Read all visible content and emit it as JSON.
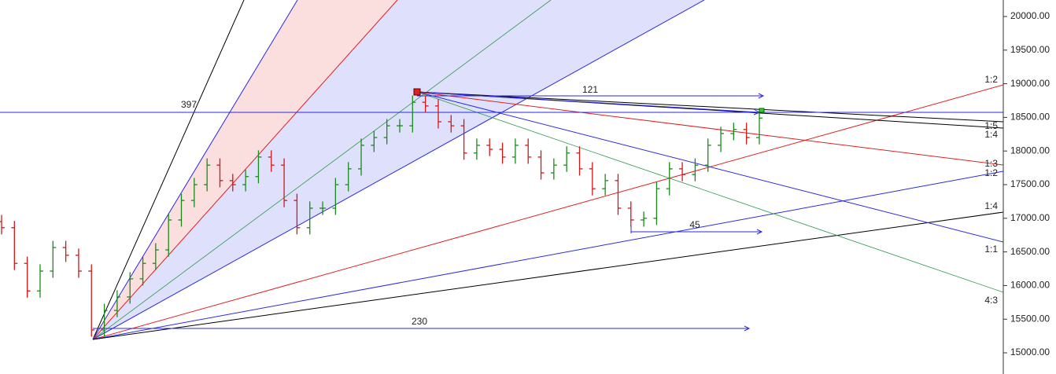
{
  "chart_data": {
    "type": "ohlc",
    "open": [
      16950,
      16860,
      16330,
      15920,
      16215,
      16565,
      16450,
      16215,
      15340,
      15630,
      15830,
      16100,
      16330,
      16530,
      16975,
      17265,
      17500,
      17790,
      17560,
      17500,
      17620,
      17910,
      17790,
      17265,
      16860,
      17150,
      17150,
      17500,
      17735,
      18085,
      18200,
      18375,
      18375,
      18725,
      18670,
      18435,
      18375,
      17970,
      18085,
      18025,
      17910,
      18085,
      17910,
      17675,
      17790,
      17970,
      17735,
      17440,
      17560,
      17150,
      16975,
      17000,
      17440,
      17735,
      17650,
      17790,
      18085,
      18260,
      18320,
      18200
    ],
    "high": [
      17050,
      16960,
      16430,
      16315,
      16665,
      16665,
      16550,
      16315,
      15730,
      15930,
      16200,
      16430,
      16630,
      17075,
      17365,
      17600,
      17890,
      17890,
      17660,
      17720,
      18010,
      18010,
      17890,
      17365,
      17250,
      17250,
      17600,
      17835,
      18185,
      18300,
      18475,
      18475,
      18825,
      18825,
      18770,
      18535,
      18475,
      18185,
      18185,
      18125,
      18185,
      18185,
      18010,
      17890,
      18070,
      18070,
      17835,
      17660,
      17660,
      17250,
      17100,
      17540,
      17835,
      17835,
      17890,
      18185,
      18360,
      18420,
      18420,
      18590
    ],
    "low": [
      16760,
      16230,
      15820,
      15820,
      16115,
      16350,
      16115,
      15240,
      15240,
      15530,
      15730,
      16000,
      16230,
      16430,
      16875,
      17165,
      17400,
      17460,
      17400,
      17400,
      17520,
      17690,
      17165,
      16760,
      16760,
      17050,
      17050,
      17400,
      17635,
      17985,
      18100,
      18275,
      18275,
      18570,
      18335,
      18275,
      17870,
      17870,
      17925,
      17810,
      17810,
      17810,
      17575,
      17575,
      17690,
      17635,
      17340,
      17340,
      17050,
      16875,
      16875,
      16900,
      17340,
      17550,
      17550,
      17690,
      17985,
      18160,
      18100,
      18100
    ],
    "close": [
      16860,
      16330,
      15920,
      16215,
      16565,
      16450,
      16215,
      15340,
      15630,
      15830,
      16100,
      16330,
      16530,
      16975,
      17265,
      17500,
      17790,
      17560,
      17500,
      17620,
      17910,
      17790,
      17265,
      16860,
      17150,
      17150,
      17500,
      17735,
      18085,
      18200,
      18375,
      18375,
      18725,
      18670,
      18435,
      18375,
      17970,
      18085,
      18025,
      17910,
      18085,
      17910,
      17675,
      17790,
      17970,
      17735,
      17440,
      17560,
      17150,
      16975,
      17000,
      17440,
      17735,
      17650,
      17790,
      18085,
      18260,
      18320,
      18200,
      18490
    ],
    "up_color": "#1a8a1a",
    "down_color": "#d01818",
    "ylim": [
      14685,
      20245
    ],
    "yticks": [
      {
        "value": 15000,
        "label": "15000.00"
      },
      {
        "value": 15500,
        "label": "15500.00"
      },
      {
        "value": 16000,
        "label": "16000.00"
      },
      {
        "value": 16500,
        "label": "16500.00"
      },
      {
        "value": 17000,
        "label": "17000.00"
      },
      {
        "value": 17500,
        "label": "17500.00"
      },
      {
        "value": 18000,
        "label": "18000.00"
      },
      {
        "value": 18500,
        "label": "18500.00"
      },
      {
        "value": 19000,
        "label": "19000.00"
      },
      {
        "value": 19500,
        "label": "19500.00"
      },
      {
        "value": 20000,
        "label": "20000.00"
      }
    ],
    "annotations": [
      "397",
      "121",
      "230",
      "45",
      "1:2",
      "1:5",
      "1:4",
      "1:3",
      "1:2",
      "1:4",
      "1:1",
      "4:3"
    ]
  }
}
